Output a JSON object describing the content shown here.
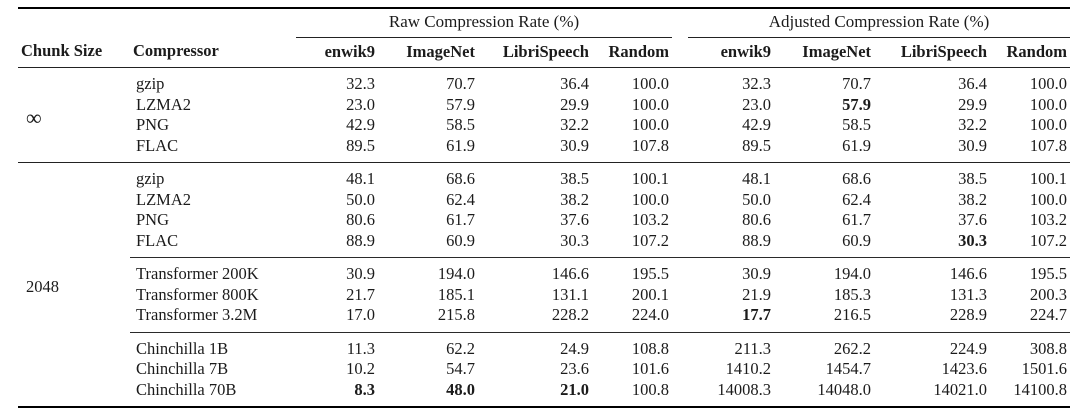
{
  "table": {
    "group_headers": [
      "Raw Compression Rate (%)",
      "Adjusted Compression Rate (%)"
    ],
    "columns": {
      "chunk_size": "Chunk Size",
      "compressor": "Compressor",
      "metrics": [
        "enwik9",
        "ImageNet",
        "LibriSpeech",
        "Random"
      ]
    },
    "blocks": [
      {
        "chunk_size": "∞",
        "sub_blocks": [
          {
            "rows": [
              {
                "compressor": "gzip",
                "raw": [
                  "32.3",
                  "70.7",
                  "36.4",
                  "100.0"
                ],
                "adj": [
                  "32.3",
                  "70.7",
                  "36.4",
                  "100.0"
                ],
                "bold_raw": [],
                "bold_adj": []
              },
              {
                "compressor": "LZMA2",
                "raw": [
                  "23.0",
                  "57.9",
                  "29.9",
                  "100.0"
                ],
                "adj": [
                  "23.0",
                  "57.9",
                  "29.9",
                  "100.0"
                ],
                "bold_raw": [],
                "bold_adj": [
                  1
                ]
              },
              {
                "compressor": "PNG",
                "raw": [
                  "42.9",
                  "58.5",
                  "32.2",
                  "100.0"
                ],
                "adj": [
                  "42.9",
                  "58.5",
                  "32.2",
                  "100.0"
                ],
                "bold_raw": [],
                "bold_adj": []
              },
              {
                "compressor": "FLAC",
                "raw": [
                  "89.5",
                  "61.9",
                  "30.9",
                  "107.8"
                ],
                "adj": [
                  "89.5",
                  "61.9",
                  "30.9",
                  "107.8"
                ],
                "bold_raw": [],
                "bold_adj": []
              }
            ]
          }
        ]
      },
      {
        "chunk_size": "2048",
        "sub_blocks": [
          {
            "rows": [
              {
                "compressor": "gzip",
                "raw": [
                  "48.1",
                  "68.6",
                  "38.5",
                  "100.1"
                ],
                "adj": [
                  "48.1",
                  "68.6",
                  "38.5",
                  "100.1"
                ],
                "bold_raw": [],
                "bold_adj": []
              },
              {
                "compressor": "LZMA2",
                "raw": [
                  "50.0",
                  "62.4",
                  "38.2",
                  "100.0"
                ],
                "adj": [
                  "50.0",
                  "62.4",
                  "38.2",
                  "100.0"
                ],
                "bold_raw": [],
                "bold_adj": []
              },
              {
                "compressor": "PNG",
                "raw": [
                  "80.6",
                  "61.7",
                  "37.6",
                  "103.2"
                ],
                "adj": [
                  "80.6",
                  "61.7",
                  "37.6",
                  "103.2"
                ],
                "bold_raw": [],
                "bold_adj": []
              },
              {
                "compressor": "FLAC",
                "raw": [
                  "88.9",
                  "60.9",
                  "30.3",
                  "107.2"
                ],
                "adj": [
                  "88.9",
                  "60.9",
                  "30.3",
                  "107.2"
                ],
                "bold_raw": [],
                "bold_adj": [
                  2
                ]
              }
            ]
          },
          {
            "rows": [
              {
                "compressor": "Transformer 200K",
                "raw": [
                  "30.9",
                  "194.0",
                  "146.6",
                  "195.5"
                ],
                "adj": [
                  "30.9",
                  "194.0",
                  "146.6",
                  "195.5"
                ],
                "bold_raw": [],
                "bold_adj": []
              },
              {
                "compressor": "Transformer 800K",
                "raw": [
                  "21.7",
                  "185.1",
                  "131.1",
                  "200.1"
                ],
                "adj": [
                  "21.9",
                  "185.3",
                  "131.3",
                  "200.3"
                ],
                "bold_raw": [],
                "bold_adj": []
              },
              {
                "compressor": "Transformer 3.2M",
                "raw": [
                  "17.0",
                  "215.8",
                  "228.2",
                  "224.0"
                ],
                "adj": [
                  "17.7",
                  "216.5",
                  "228.9",
                  "224.7"
                ],
                "bold_raw": [],
                "bold_adj": [
                  0
                ]
              }
            ]
          },
          {
            "rows": [
              {
                "compressor": "Chinchilla 1B",
                "raw": [
                  "11.3",
                  "62.2",
                  "24.9",
                  "108.8"
                ],
                "adj": [
                  "211.3",
                  "262.2",
                  "224.9",
                  "308.8"
                ],
                "bold_raw": [],
                "bold_adj": []
              },
              {
                "compressor": "Chinchilla 7B",
                "raw": [
                  "10.2",
                  "54.7",
                  "23.6",
                  "101.6"
                ],
                "adj": [
                  "1410.2",
                  "1454.7",
                  "1423.6",
                  "1501.6"
                ],
                "bold_raw": [],
                "bold_adj": []
              },
              {
                "compressor": "Chinchilla 70B",
                "raw": [
                  "8.3",
                  "48.0",
                  "21.0",
                  "100.8"
                ],
                "adj": [
                  "14008.3",
                  "14048.0",
                  "14021.0",
                  "14100.8"
                ],
                "bold_raw": [
                  0,
                  1,
                  2
                ],
                "bold_adj": []
              }
            ]
          }
        ]
      }
    ]
  }
}
